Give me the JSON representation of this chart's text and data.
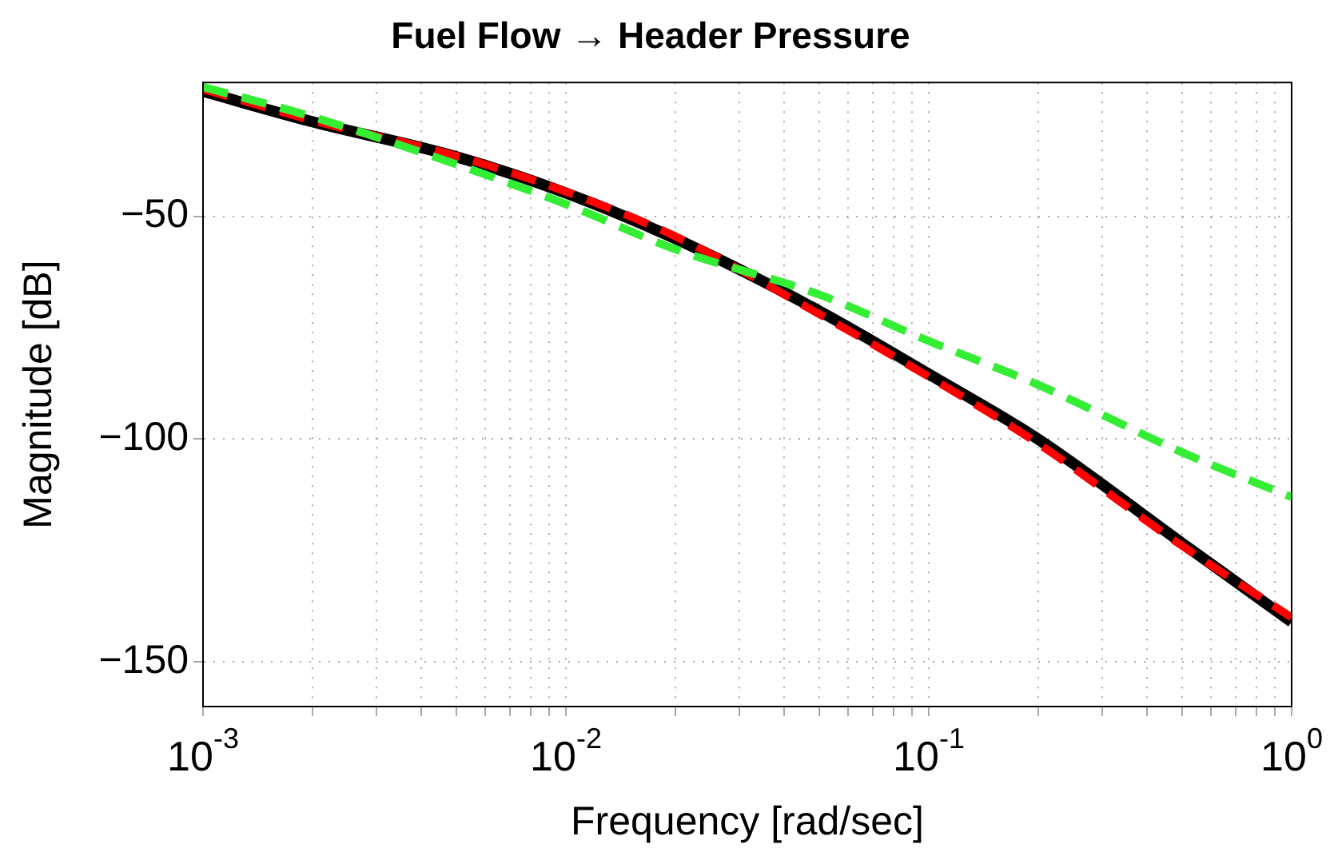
{
  "chart_data": {
    "type": "line",
    "title": "Fuel Flow → Header Pressure",
    "xlabel": "Frequency [rad/sec]",
    "ylabel": "Magnitude [dB]",
    "log": "x",
    "grid": true,
    "legend": false,
    "marker": "none",
    "xlim": [
      0.001,
      1
    ],
    "ylim": [
      -160,
      -20
    ],
    "xticks": [
      {
        "value": 0.001,
        "label": "10$^{-3}$"
      },
      {
        "value": 0.002,
        "label": null
      },
      {
        "value": 0.003,
        "label": null
      },
      {
        "value": 0.004,
        "label": null
      },
      {
        "value": 0.005,
        "label": null
      },
      {
        "value": 0.006,
        "label": null
      },
      {
        "value": 0.007,
        "label": null
      },
      {
        "value": 0.008,
        "label": null
      },
      {
        "value": 0.009,
        "label": null
      },
      {
        "value": 0.01,
        "label": "10$^{-2}$"
      },
      {
        "value": 0.02,
        "label": null
      },
      {
        "value": 0.03,
        "label": null
      },
      {
        "value": 0.04,
        "label": null
      },
      {
        "value": 0.05,
        "label": null
      },
      {
        "value": 0.06,
        "label": null
      },
      {
        "value": 0.07,
        "label": null
      },
      {
        "value": 0.08,
        "label": null
      },
      {
        "value": 0.09,
        "label": null
      },
      {
        "value": 0.1,
        "label": "10$^{-1}$"
      },
      {
        "value": 0.2,
        "label": null
      },
      {
        "value": 0.3,
        "label": null
      },
      {
        "value": 0.4,
        "label": null
      },
      {
        "value": 0.5,
        "label": null
      },
      {
        "value": 0.6,
        "label": null
      },
      {
        "value": 0.7,
        "label": null
      },
      {
        "value": 0.8,
        "label": null
      },
      {
        "value": 0.9,
        "label": null
      },
      {
        "value": 1,
        "label": "10$^{0}$"
      }
    ],
    "yticks": [
      {
        "value": -150,
        "label": "−150"
      },
      {
        "value": -100,
        "label": "−100"
      },
      {
        "value": -50,
        "label": "−50"
      }
    ],
    "x": [
      0.001,
      0.002,
      0.005,
      0.01,
      0.02,
      0.05,
      0.1,
      0.2,
      0.5,
      1
    ],
    "series": [
      {
        "color": "#000000",
        "line_style": "solid",
        "values": [
          -22,
          -28.8,
          -36.7,
          -44.8,
          -55,
          -71.3,
          -85.4,
          -100,
          -123.4,
          -141
        ]
      },
      {
        "color": "#ff0000",
        "line_style": "dashed",
        "values": [
          -21.5,
          -28.5,
          -36.5,
          -44.5,
          -54.5,
          -72,
          -86,
          -101,
          -124,
          -140
        ]
      },
      {
        "color": "#33ee33",
        "line_style": "dashed",
        "values": [
          -21,
          -27.7,
          -38.4,
          -47.3,
          -57.4,
          -67.6,
          -78,
          -87.8,
          -103,
          -113
        ]
      }
    ]
  }
}
